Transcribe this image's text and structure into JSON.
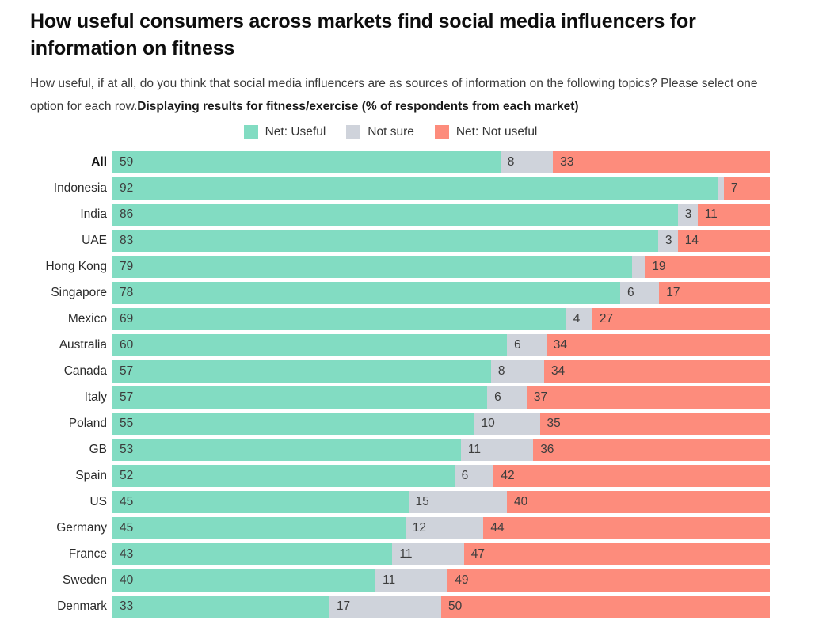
{
  "header": {
    "title": "How useful consumers across markets find social media influencers for information on fitness",
    "subtitle_normal": "How useful, if at all, do you think that social media influencers are as sources of information on the following topics? Please select one option for each row.",
    "subtitle_bold": "Displaying results for fitness/exercise (% of respondents from each market)"
  },
  "chart_data": {
    "type": "bar",
    "orientation": "horizontal-stacked",
    "title": "How useful consumers across markets find social media influencers for information on fitness",
    "legend_position": "top-center",
    "grid": false,
    "min_label_value": 3,
    "emphasized_category_index": 0,
    "categories": [
      "All",
      "Indonesia",
      "India",
      "UAE",
      "Hong Kong",
      "Singapore",
      "Mexico",
      "Australia",
      "Canada",
      "Italy",
      "Poland",
      "GB",
      "Spain",
      "US",
      "Germany",
      "France",
      "Sweden",
      "Denmark"
    ],
    "series": [
      {
        "name": "Net: Useful",
        "color": "#82dcc2",
        "values": [
          59,
          92,
          86,
          83,
          79,
          78,
          69,
          60,
          57,
          57,
          55,
          53,
          52,
          45,
          45,
          43,
          40,
          33
        ]
      },
      {
        "name": "Not sure",
        "color": "#cfd3db",
        "values": [
          8,
          1,
          3,
          3,
          2,
          6,
          4,
          6,
          8,
          6,
          10,
          11,
          6,
          15,
          12,
          11,
          11,
          17
        ]
      },
      {
        "name": "Net: Not useful",
        "color": "#fd8c7c",
        "values": [
          33,
          7,
          11,
          14,
          19,
          17,
          27,
          34,
          34,
          37,
          35,
          36,
          42,
          40,
          44,
          47,
          49,
          50
        ]
      }
    ]
  }
}
